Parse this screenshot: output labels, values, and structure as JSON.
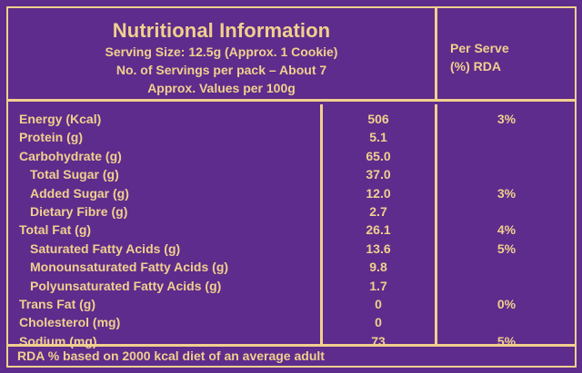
{
  "colors": {
    "background": "#5e2c8c",
    "text": "#f0d08e"
  },
  "header": {
    "title": "Nutritional Information",
    "serving_size": "Serving Size: 12.5g (Approx. 1 Cookie)",
    "servings_per_pack": "No. of Servings per pack – About 7",
    "values_basis": "Approx. Values per 100g",
    "rda_heading_line1": "Per Serve",
    "rda_heading_line2": "(%) RDA"
  },
  "rows": [
    {
      "name": "Energy (Kcal)",
      "value": "506",
      "rda": "3%"
    },
    {
      "name": "Protein (g)",
      "value": "5.1",
      "rda": ""
    },
    {
      "name": "Carbohydrate (g)",
      "value": "65.0",
      "rda": ""
    },
    {
      "name": "Total Sugar (g)",
      "value": "37.0",
      "rda": ""
    },
    {
      "name": "Added Sugar (g)",
      "value": "12.0",
      "rda": "3%"
    },
    {
      "name": "Dietary Fibre (g)",
      "value": "2.7",
      "rda": ""
    },
    {
      "name": "Total Fat (g)",
      "value": "26.1",
      "rda": "4%"
    },
    {
      "name": "Saturated Fatty Acids (g)",
      "value": "13.6",
      "rda": "5%"
    },
    {
      "name": "Monounsaturated Fatty Acids (g)",
      "value": "9.8",
      "rda": ""
    },
    {
      "name": "Polyunsaturated Fatty Acids (g)",
      "value": "1.7",
      "rda": ""
    },
    {
      "name": "Trans Fat (g)",
      "value": "0",
      "rda": "0%"
    },
    {
      "name": "Cholesterol (mg)",
      "value": "0",
      "rda": ""
    },
    {
      "name": "Sodium (mg)",
      "value": "73",
      "rda": "5%"
    }
  ],
  "footer": "RDA % based on 2000 kcal diet of an average adult"
}
